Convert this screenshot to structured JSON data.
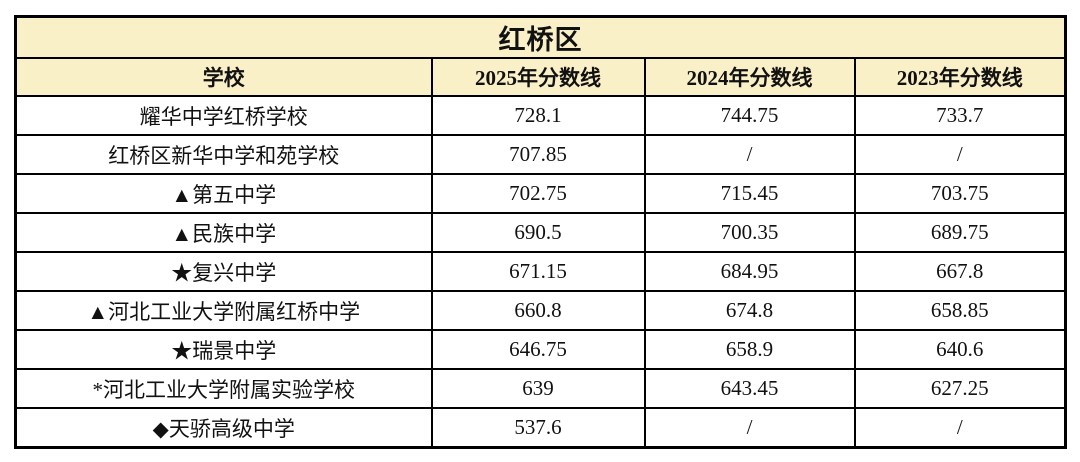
{
  "table": {
    "title": "红桥区",
    "columns": [
      "学校",
      "2025年分数线",
      "2024年分数线",
      "2023年分数线"
    ],
    "rows": [
      [
        "耀华中学红桥学校",
        "728.1",
        "744.75",
        "733.7"
      ],
      [
        "红桥区新华中学和苑学校",
        "707.85",
        "/",
        "/"
      ],
      [
        "▲第五中学",
        "702.75",
        "715.45",
        "703.75"
      ],
      [
        "▲民族中学",
        "690.5",
        "700.35",
        "689.75"
      ],
      [
        "★复兴中学",
        "671.15",
        "684.95",
        "667.8"
      ],
      [
        "▲河北工业大学附属红桥中学",
        "660.8",
        "674.8",
        "658.85"
      ],
      [
        "★瑞景中学",
        "646.75",
        "658.9",
        "640.6"
      ],
      [
        "*河北工业大学附属实验学校",
        "639",
        "643.45",
        "627.25"
      ],
      [
        "◆天骄高级中学",
        "537.6",
        "/",
        "/"
      ]
    ],
    "colors": {
      "header_bg": "#FAF0C8",
      "border": "#000000",
      "row_bg": "#FFFFFF",
      "text": "#111111"
    }
  }
}
